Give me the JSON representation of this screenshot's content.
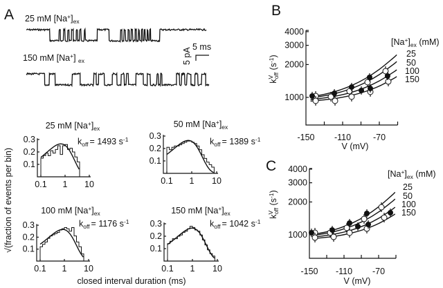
{
  "panel_a": {
    "label": "A",
    "traces": [
      {
        "conc": "25 mM [Na",
        "sup": "+",
        "close": "]",
        "sub": "ex",
        "levels": [
          [
            0,
            9
          ],
          [
            1,
            3.5
          ],
          [
            0,
            0.5
          ],
          [
            1,
            1.2
          ],
          [
            0,
            0.6
          ],
          [
            1,
            1.0
          ],
          [
            0,
            0.5
          ],
          [
            1,
            0.9
          ],
          [
            0,
            0.7
          ],
          [
            1,
            1.1
          ],
          [
            0,
            0.5
          ],
          [
            1,
            0.8
          ],
          [
            0,
            0.6
          ],
          [
            1,
            1.2
          ],
          [
            0,
            0.4
          ],
          [
            1,
            4.5
          ],
          [
            0,
            4.5
          ],
          [
            1,
            4.4
          ],
          [
            0,
            0.5
          ],
          [
            1,
            0.8
          ],
          [
            0,
            0.6
          ],
          [
            1,
            0.9
          ],
          [
            0,
            0.5
          ],
          [
            1,
            0.7
          ],
          [
            0,
            0.6
          ],
          [
            1,
            0.9
          ],
          [
            0,
            0.5
          ],
          [
            1,
            0.8
          ],
          [
            0,
            0.4
          ],
          [
            1,
            0.7
          ],
          [
            0,
            0.5
          ],
          [
            1,
            0.6
          ],
          [
            0,
            0.4
          ],
          [
            1,
            0.7
          ],
          [
            0,
            0.4
          ],
          [
            1,
            0.6
          ],
          [
            0,
            0.3
          ],
          [
            1,
            3.5
          ],
          [
            0,
            17.7
          ]
        ]
      },
      {
        "conc": "150 mM [Na",
        "sup": "+",
        "close": "] ",
        "sub": "ex",
        "levels": [
          [
            0,
            7
          ],
          [
            1,
            1.8
          ],
          [
            0,
            2.2
          ],
          [
            1,
            6.5
          ],
          [
            0,
            3
          ],
          [
            1,
            5.2
          ],
          [
            0,
            0.9
          ],
          [
            1,
            0.9
          ],
          [
            0,
            2.2
          ],
          [
            1,
            3
          ],
          [
            0,
            1.8
          ],
          [
            1,
            1.6
          ],
          [
            0,
            1.2
          ],
          [
            1,
            0.8
          ],
          [
            0,
            0.8
          ],
          [
            1,
            2.8
          ],
          [
            0,
            2.8
          ],
          [
            1,
            1.5
          ],
          [
            0,
            1.2
          ],
          [
            1,
            2.5
          ],
          [
            0,
            0.6
          ],
          [
            1,
            0.8
          ],
          [
            0,
            0.5
          ],
          [
            1,
            5.5
          ],
          [
            0,
            1.2
          ],
          [
            1,
            0.8
          ],
          [
            0,
            1.2
          ],
          [
            1,
            0.8
          ],
          [
            0,
            1.5
          ],
          [
            1,
            1.5
          ],
          [
            0,
            1.2
          ],
          [
            1,
            1.4
          ],
          [
            0,
            1.5
          ],
          [
            1,
            1.3
          ]
        ]
      }
    ],
    "scale_bar": {
      "time": "5 ms",
      "current": "5 pA"
    },
    "y_label": "√(fraction of events per bin)",
    "x_label": "closed interval duration (ms)"
  },
  "chart_data": [
    {
      "type": "bar",
      "panel": "A",
      "title": {
        "conc": "25 mM [Na",
        "sup": "+",
        "close": "]",
        "sub": "ex"
      },
      "koff": {
        "prefix": "k",
        "sub": "off",
        "value": "= 1493 s",
        "exp": "-1"
      },
      "koff_value": 1493,
      "x_scale": "log",
      "xlim": [
        0.1,
        10
      ],
      "xticks": [
        "0.1",
        "1",
        "10"
      ],
      "yticks": [
        "0.1",
        "0.2",
        "0.3"
      ],
      "ylim": [
        0,
        0.3
      ],
      "bin_start": 0.1,
      "bins_per_decade": 10,
      "values": [
        0.15,
        0.17,
        0.19,
        0.17,
        0.21,
        0.19,
        0.22,
        0.25,
        0.18,
        0.25,
        0.26,
        0.22,
        0.23,
        0.2,
        0.16,
        0.12
      ]
    },
    {
      "type": "bar",
      "panel": "A",
      "title": {
        "conc": "50 mM [Na",
        "sup": "+",
        "close": "]",
        "sub": "ex"
      },
      "koff": {
        "prefix": "k",
        "sub": "off",
        "value": "= 1389 s",
        "exp": "-1"
      },
      "koff_value": 1389,
      "x_scale": "log",
      "xlim": [
        0.1,
        10
      ],
      "xticks": [
        "0.1",
        "1",
        "10"
      ],
      "yticks": [
        "0.1",
        "0.2",
        "0.3"
      ],
      "ylim": [
        0,
        0.3
      ],
      "bin_start": 0.1,
      "bins_per_decade": 10,
      "values": [
        0.21,
        0.19,
        0.21,
        0.22,
        0.22,
        0.23,
        0.24,
        0.25,
        0.26,
        0.26,
        0.25,
        0.24,
        0.22,
        0.19,
        0.15,
        0.12,
        0.09,
        0.07,
        0.05
      ]
    },
    {
      "type": "bar",
      "panel": "A",
      "title": {
        "conc": "100 mM [Na",
        "sup": "+",
        "close": "]",
        "sub": "ex"
      },
      "koff": {
        "prefix": "k",
        "sub": "off",
        "value": "= 1176 s",
        "exp": "-1"
      },
      "koff_value": 1176,
      "x_scale": "log",
      "xlim": [
        0.1,
        10
      ],
      "xticks": [
        "0.1",
        "1",
        "10"
      ],
      "yticks": [
        "0.1",
        "0.2",
        "0.3"
      ],
      "ylim": [
        0,
        0.3
      ],
      "bin_start": 0.1,
      "bins_per_decade": 10,
      "values": [
        0.12,
        0.14,
        0.16,
        0.19,
        0.21,
        0.22,
        0.23,
        0.24,
        0.26,
        0.27,
        0.28,
        0.27,
        0.25,
        0.28,
        0.21,
        0.16,
        0.12,
        0.06
      ]
    },
    {
      "type": "bar",
      "panel": "A",
      "title": {
        "conc": "150 mM [Na",
        "sup": "+",
        "close": "]",
        "sub": "ex"
      },
      "koff": {
        "prefix": "k",
        "sub": "off",
        "value": "= 1042 s",
        "exp": "-1"
      },
      "koff_value": 1042,
      "x_scale": "log",
      "xlim": [
        0.1,
        10
      ],
      "xticks": [
        "0.1",
        "1",
        "10"
      ],
      "yticks": [
        "0.1",
        "0.2",
        "0.3"
      ],
      "ylim": [
        0,
        0.3
      ],
      "bin_start": 0.1,
      "bins_per_decade": 10,
      "values": [
        0.14,
        0.16,
        0.18,
        0.18,
        0.2,
        0.21,
        0.23,
        0.24,
        0.26,
        0.28,
        0.27,
        0.25,
        0.24,
        0.21,
        0.17,
        0.13,
        0.09,
        0.06,
        0.04
      ]
    },
    {
      "type": "scatter",
      "panel": "B",
      "label": "B",
      "ylabel": {
        "k": "k",
        "sup": "V",
        "sub": "off",
        "unit": " (s",
        "exp": "-1",
        "close": ")"
      },
      "xlabel": "V (mV)",
      "y_scale": "log",
      "ylim": [
        560,
        4000
      ],
      "xlim": [
        -150,
        -50
      ],
      "yticks": [
        "1000",
        "2000",
        "3000",
        "4000"
      ],
      "xticks": [
        "-150",
        "-110",
        "-70"
      ],
      "legend": {
        "title": "[Na",
        "sup": "+",
        "close": "]",
        "sub": "ex",
        "unit": " (mM)",
        "entries": [
          "25",
          "50",
          "100",
          "150"
        ]
      },
      "filled_points": [
        [
          -143.2,
          1030
        ],
        [
          -119,
          1091
        ],
        [
          -100.2,
          1244
        ],
        [
          -89.6,
          1157
        ],
        [
          -80.6,
          1526
        ],
        [
          -79.8,
          1208
        ],
        [
          -61,
          1571
        ]
      ],
      "open_points": [
        [
          -139.4,
          1030
        ],
        [
          -139.4,
          930
        ],
        [
          -122.8,
          1015
        ],
        [
          -118.3,
          930
        ],
        [
          -102.5,
          1140
        ],
        [
          -100.2,
          1015
        ],
        [
          -82.8,
          1378
        ],
        [
          -79.8,
          1124
        ],
        [
          -63.2,
          1740
        ],
        [
          -60.2,
          1398
        ]
      ],
      "fits": [
        {
          "name": "25",
          "points": [
            [
              -145,
              1011
            ],
            [
              -130,
              1067
            ],
            [
              -115,
              1154
            ],
            [
              -100,
              1287
            ],
            [
              -85,
              1492
            ],
            [
              -70,
              1806
            ],
            [
              -55,
              2288
            ],
            [
              -51,
              2455
            ]
          ]
        },
        {
          "name": "50",
          "points": [
            [
              -145,
              990
            ],
            [
              -130,
              1035
            ],
            [
              -115,
              1103
            ],
            [
              -100,
              1209
            ],
            [
              -85,
              1370
            ],
            [
              -70,
              1618
            ],
            [
              -55,
              1998
            ],
            [
              -51,
              2130
            ]
          ]
        },
        {
          "name": "100",
          "points": [
            [
              -145,
              955
            ],
            [
              -130,
              988
            ],
            [
              -115,
              1038
            ],
            [
              -100,
              1115
            ],
            [
              -85,
              1234
            ],
            [
              -70,
              1416
            ],
            [
              -55,
              1694
            ],
            [
              -51,
              1791
            ]
          ]
        },
        {
          "name": "150",
          "points": [
            [
              -145,
              925
            ],
            [
              -130,
              949
            ],
            [
              -115,
              987
            ],
            [
              -100,
              1045
            ],
            [
              -85,
              1134
            ],
            [
              -70,
              1270
            ],
            [
              -55,
              1479
            ],
            [
              -51,
              1552
            ]
          ]
        }
      ]
    },
    {
      "type": "scatter",
      "panel": "C",
      "label": "C",
      "ylabel": {
        "k": "k",
        "sup": "V",
        "sub": "off",
        "unit": " (s",
        "exp": "-1",
        "close": ")"
      },
      "xlabel": "V (mV)",
      "y_scale": "log",
      "ylim": [
        620,
        4000
      ],
      "xlim": [
        -150,
        -50
      ],
      "yticks": [
        "1000",
        "2000",
        "3000",
        "4000"
      ],
      "xticks": [
        "-150",
        "-110",
        "-70"
      ],
      "legend": {
        "title": "[Na",
        "sup": "+",
        "close": "]",
        "sub": "ex",
        "unit": " (mM)",
        "entries": [
          "25",
          "50",
          "100",
          "150"
        ]
      },
      "filled_points": [
        [
          -147.6,
          1045
        ],
        [
          -123.6,
          1107
        ],
        [
          -103.6,
          1281
        ],
        [
          -94,
          1191
        ],
        [
          -83.6,
          1571
        ],
        [
          -82,
          1244
        ],
        [
          -56.4,
          1594
        ]
      ],
      "open_points": [
        [
          -143.6,
          1045
        ],
        [
          -143.6,
          943
        ],
        [
          -126,
          1045
        ],
        [
          -122,
          957
        ],
        [
          -106.8,
          1157
        ],
        [
          -103.6,
          1045
        ],
        [
          -86.8,
          1398
        ],
        [
          -83.6,
          1140
        ],
        [
          -66.8,
          1791
        ],
        [
          -63.6,
          1438
        ]
      ],
      "fits": [
        {
          "name": "25",
          "points": [
            [
              -145,
              1011
            ],
            [
              -130,
              1067
            ],
            [
              -115,
              1154
            ],
            [
              -100,
              1287
            ],
            [
              -85,
              1492
            ],
            [
              -70,
              1806
            ],
            [
              -55,
              2288
            ],
            [
              -51,
              2455
            ]
          ]
        },
        {
          "name": "50",
          "points": [
            [
              -145,
              990
            ],
            [
              -130,
              1035
            ],
            [
              -115,
              1103
            ],
            [
              -100,
              1209
            ],
            [
              -85,
              1370
            ],
            [
              -70,
              1618
            ],
            [
              -55,
              1998
            ],
            [
              -51,
              2130
            ]
          ]
        },
        {
          "name": "100",
          "points": [
            [
              -145,
              955
            ],
            [
              -130,
              988
            ],
            [
              -115,
              1038
            ],
            [
              -100,
              1115
            ],
            [
              -85,
              1234
            ],
            [
              -70,
              1416
            ],
            [
              -55,
              1694
            ],
            [
              -51,
              1791
            ]
          ]
        },
        {
          "name": "150",
          "points": [
            [
              -145,
              925
            ],
            [
              -130,
              949
            ],
            [
              -115,
              987
            ],
            [
              -100,
              1045
            ],
            [
              -85,
              1134
            ],
            [
              -70,
              1270
            ],
            [
              -55,
              1479
            ],
            [
              -51,
              1552
            ]
          ]
        }
      ]
    }
  ]
}
